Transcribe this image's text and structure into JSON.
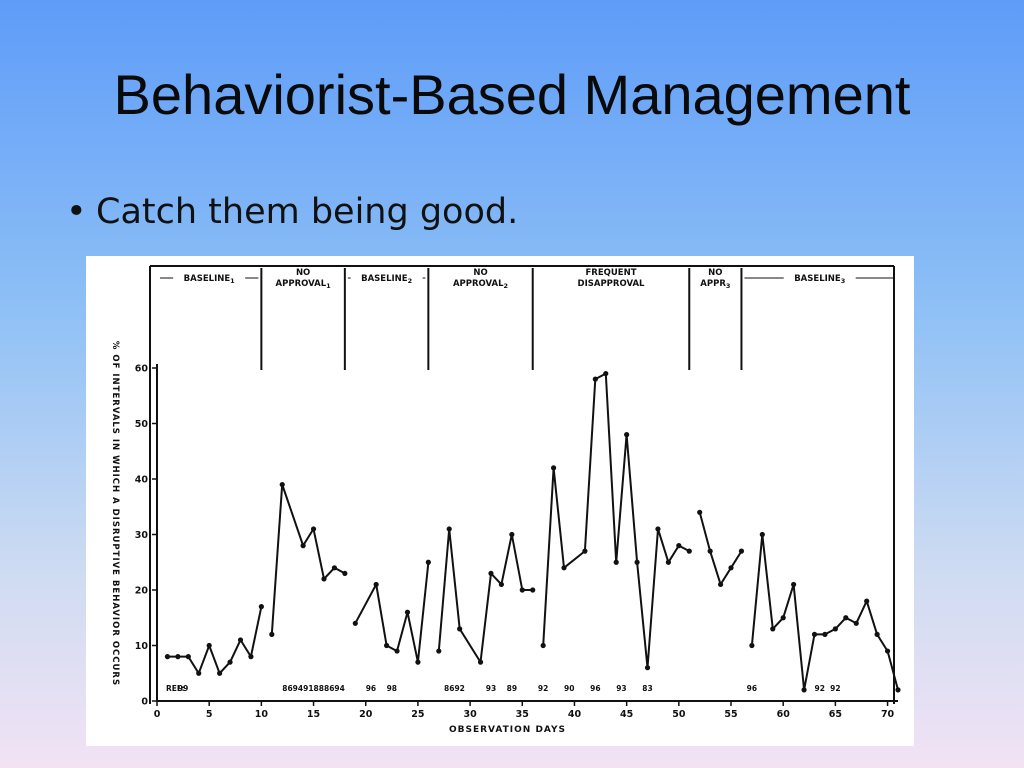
{
  "slide": {
    "title": "Behaviorist-Based Management",
    "bullet": "Catch them being good."
  },
  "chart_data": {
    "type": "line",
    "title": "",
    "xlabel": "OBSERVATION DAYS",
    "ylabel": "% OF INTERVALS IN WHICH A DISRUPTIVE BEHAVIOR OCCURS",
    "xlim": [
      0,
      71
    ],
    "ylim": [
      0,
      60
    ],
    "xticks": [
      0,
      5,
      10,
      15,
      20,
      25,
      30,
      35,
      40,
      45,
      50,
      55,
      60,
      65,
      70
    ],
    "yticks": [
      0,
      10,
      20,
      30,
      40,
      50,
      60
    ],
    "grid": false,
    "phases": [
      {
        "label": "BASELINE",
        "sub": "1",
        "start": 0,
        "end": 10
      },
      {
        "label": "NO APPROVAL",
        "sub": "1",
        "start": 10,
        "end": 18
      },
      {
        "label": "BASELINE",
        "sub": "2",
        "start": 18,
        "end": 26
      },
      {
        "label": "NO APPROVAL",
        "sub": "2",
        "start": 26,
        "end": 36
      },
      {
        "label": "FREQUENT DISAPPROVAL",
        "sub": "",
        "start": 36,
        "end": 51
      },
      {
        "label": "NO APPR",
        "sub": "3",
        "start": 51,
        "end": 56
      },
      {
        "label": "BASELINE",
        "sub": "3",
        "start": 56,
        "end": 71
      }
    ],
    "phase_lines": [
      10,
      18,
      26,
      36,
      51,
      56
    ],
    "segments": [
      {
        "phase": "baseline-1",
        "x": [
          1,
          2,
          3,
          4,
          5,
          6,
          7,
          8,
          9,
          10
        ],
        "y": [
          8,
          8,
          8,
          5,
          10,
          5,
          7,
          11,
          8,
          17
        ]
      },
      {
        "phase": "no-approval-1",
        "x": [
          11,
          12,
          14,
          15,
          16,
          17,
          18
        ],
        "y": [
          12,
          39,
          28,
          31,
          22,
          24,
          23
        ]
      },
      {
        "phase": "baseline-2",
        "x": [
          19,
          21,
          22,
          23,
          24,
          25,
          26
        ],
        "y": [
          14,
          21,
          10,
          9,
          16,
          7,
          25
        ]
      },
      {
        "phase": "no-approval-2",
        "x": [
          27,
          28,
          29,
          31,
          32,
          33,
          34,
          35,
          36
        ],
        "y": [
          9,
          31,
          13,
          7,
          23,
          21,
          30,
          20,
          20
        ]
      },
      {
        "phase": "frequent-disapproval",
        "x": [
          37,
          38,
          39,
          41,
          42,
          43,
          44,
          45,
          46,
          47,
          48,
          49,
          50,
          51
        ],
        "y": [
          10,
          42,
          24,
          27,
          58,
          59,
          25,
          48,
          25,
          6,
          31,
          25,
          28,
          27
        ]
      },
      {
        "phase": "no-approval-3",
        "x": [
          52,
          53,
          54,
          55,
          56
        ],
        "y": [
          34,
          27,
          21,
          24,
          27
        ]
      },
      {
        "phase": "baseline-3",
        "x": [
          57,
          58,
          59,
          60,
          61,
          62,
          63,
          64,
          65,
          66,
          67,
          68,
          69,
          70,
          71
        ],
        "y": [
          10,
          30,
          13,
          15,
          21,
          2,
          12,
          12,
          13,
          15,
          14,
          18,
          12,
          9,
          2
        ]
      }
    ],
    "rel_label": "REL:",
    "reliability": [
      {
        "x": 2.5,
        "text": "99"
      },
      {
        "x": 12.5,
        "text": "86"
      },
      {
        "x": 13.5,
        "text": "94"
      },
      {
        "x": 14.5,
        "text": "91"
      },
      {
        "x": 15.5,
        "text": "88"
      },
      {
        "x": 16.5,
        "text": "86"
      },
      {
        "x": 17.5,
        "text": "94"
      },
      {
        "x": 20.5,
        "text": "96"
      },
      {
        "x": 22.5,
        "text": "98"
      },
      {
        "x": 28,
        "text": "86"
      },
      {
        "x": 29,
        "text": "92"
      },
      {
        "x": 32,
        "text": "93"
      },
      {
        "x": 34,
        "text": "89"
      },
      {
        "x": 37,
        "text": "92"
      },
      {
        "x": 39.5,
        "text": "90"
      },
      {
        "x": 42,
        "text": "96"
      },
      {
        "x": 44.5,
        "text": "93"
      },
      {
        "x": 47,
        "text": "83"
      },
      {
        "x": 57,
        "text": "96"
      },
      {
        "x": 63.5,
        "text": "92"
      },
      {
        "x": 65,
        "text": "92"
      }
    ]
  }
}
